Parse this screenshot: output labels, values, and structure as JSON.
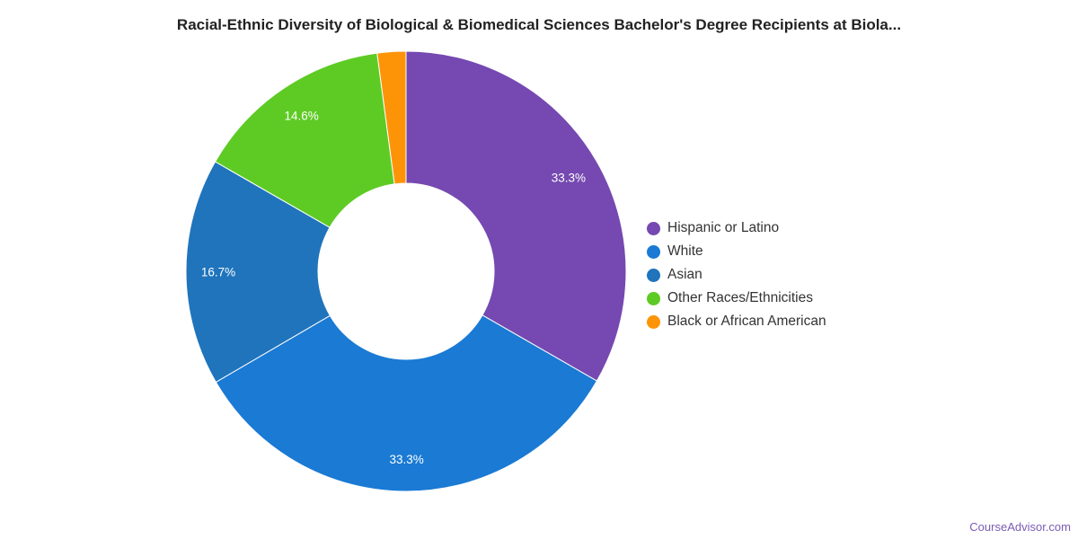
{
  "chart_data": {
    "type": "pie",
    "variant": "donut",
    "title": "Racial-Ethnic Diversity of Biological & Biomedical Sciences Bachelor's Degree Recipients at Biola...",
    "legend_position": "right",
    "slices": [
      {
        "label": "Hispanic or Latino",
        "value": 33.3,
        "display": "33.3%",
        "color": "#7549b1"
      },
      {
        "label": "White",
        "value": 33.3,
        "display": "33.3%",
        "color": "#1a7ad4"
      },
      {
        "label": "Asian",
        "value": 16.7,
        "display": "16.7%",
        "color": "#1f74bc"
      },
      {
        "label": "Other Races/Ethnicities",
        "value": 14.6,
        "display": "14.6%",
        "color": "#5ecb24"
      },
      {
        "label": "Black or African American",
        "value": 2.1,
        "display": "",
        "color": "#fd9407"
      }
    ]
  },
  "credit": "CourseAdvisor.com"
}
